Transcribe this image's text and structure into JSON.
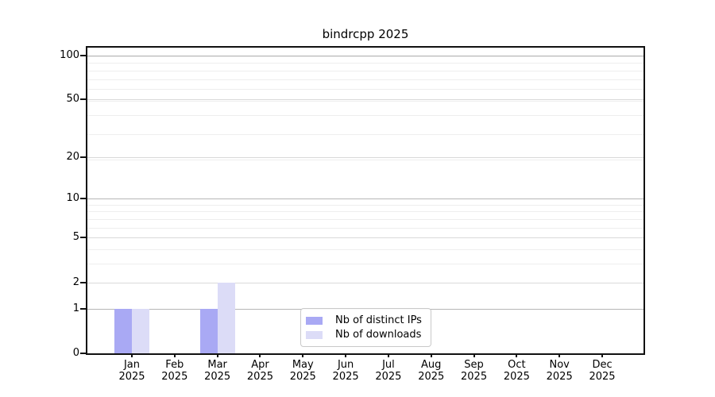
{
  "chart_data": {
    "type": "bar",
    "title": "bindrcpp 2025",
    "categories": [
      "Jan",
      "Feb",
      "Mar",
      "Apr",
      "May",
      "Jun",
      "Jul",
      "Aug",
      "Sep",
      "Oct",
      "Nov",
      "Dec"
    ],
    "x_year_label": "2025",
    "series": [
      {
        "name": "Nb of distinct IPs",
        "color": "#a9a9f4",
        "values": [
          1,
          0,
          1,
          0,
          0,
          0,
          0,
          0,
          0,
          0,
          0,
          0
        ]
      },
      {
        "name": "Nb of downloads",
        "color": "#dcdcf7",
        "values": [
          1,
          0,
          2,
          0,
          0,
          0,
          0,
          0,
          0,
          0,
          0,
          0
        ]
      }
    ],
    "y_scale": "log1p",
    "y_ticks": [
      0,
      1,
      2,
      5,
      10,
      20,
      50,
      100
    ],
    "y_decade_gridlines": [
      1,
      10,
      100
    ],
    "y_minor_gridlines": [
      3,
      4,
      6,
      7,
      8,
      9,
      19,
      29,
      39,
      49,
      59,
      69,
      79,
      89,
      99
    ],
    "ylim": [
      0,
      113
    ],
    "grid": true,
    "legend_position": "lower center"
  }
}
